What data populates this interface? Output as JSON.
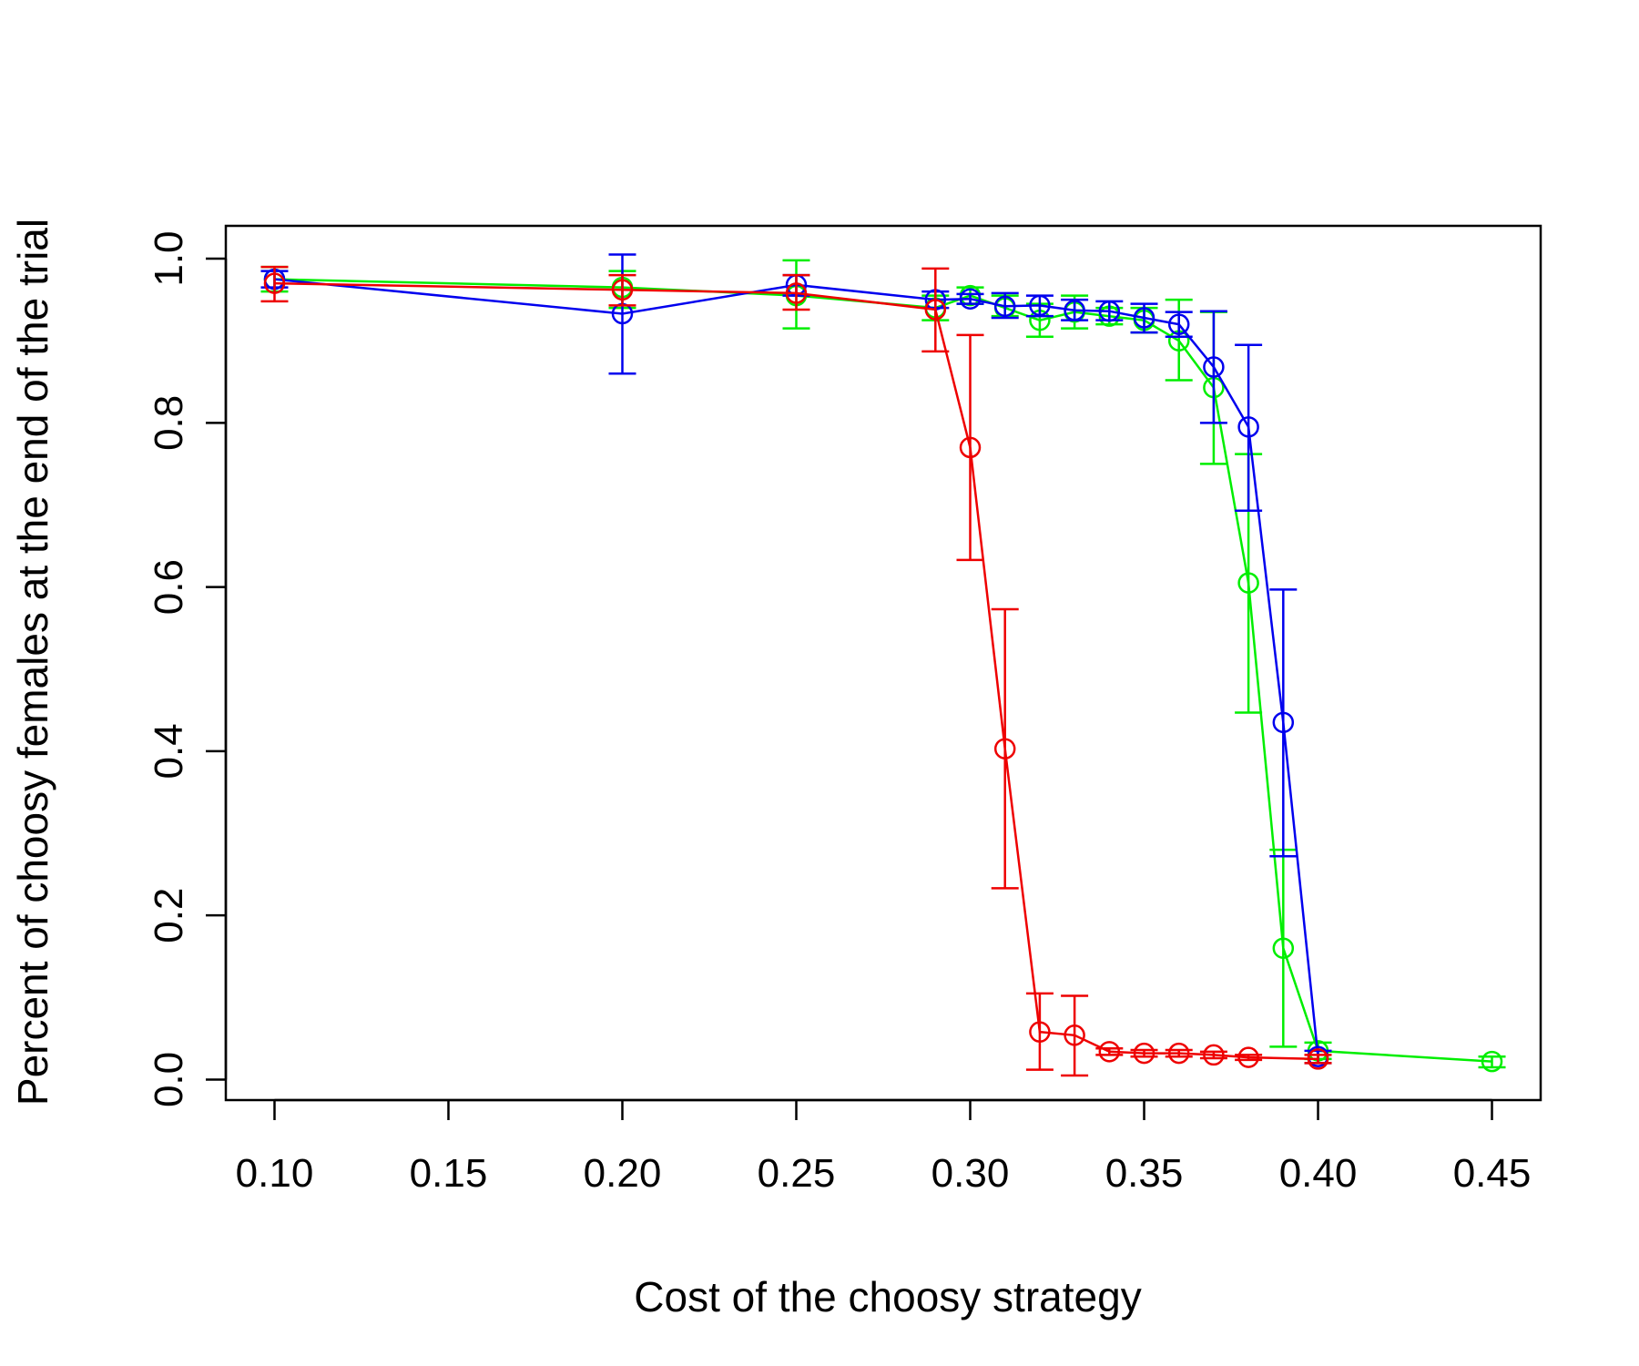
{
  "chart_data": {
    "type": "line",
    "title": "",
    "xlabel": "Cost of the choosy strategy",
    "ylabel": "Percent of choosy females at the end of the trial",
    "xlim": [
      0.086,
      0.464
    ],
    "ylim": [
      -0.025,
      1.04
    ],
    "xticks": [
      "0.10",
      "0.15",
      "0.20",
      "0.25",
      "0.30",
      "0.35",
      "0.40",
      "0.45"
    ],
    "yticks": [
      "0.0",
      "0.2",
      "0.4",
      "0.6",
      "0.8",
      "1.0"
    ],
    "grid": false,
    "legend": "none",
    "markers": "open-circle",
    "error_bars": true,
    "series": [
      {
        "name": "green",
        "color": "#00ee00",
        "x": [
          0.1,
          0.2,
          0.25,
          0.29,
          0.3,
          0.31,
          0.32,
          0.33,
          0.34,
          0.35,
          0.36,
          0.37,
          0.38,
          0.39,
          0.4,
          0.45
        ],
        "y": [
          0.975,
          0.965,
          0.955,
          0.94,
          0.955,
          0.94,
          0.925,
          0.935,
          0.93,
          0.925,
          0.9,
          0.843,
          0.605,
          0.16,
          0.035,
          0.022
        ],
        "err_low": [
          0.96,
          0.94,
          0.915,
          0.925,
          0.945,
          0.93,
          0.905,
          0.915,
          0.92,
          0.91,
          0.852,
          0.75,
          0.447,
          0.04,
          0.025,
          0.015
        ],
        "err_high": [
          0.99,
          0.985,
          0.998,
          0.955,
          0.965,
          0.955,
          0.945,
          0.955,
          0.94,
          0.94,
          0.95,
          0.935,
          0.762,
          0.28,
          0.045,
          0.028
        ]
      },
      {
        "name": "blue",
        "color": "#0000ee",
        "x": [
          0.1,
          0.2,
          0.25,
          0.29,
          0.3,
          0.31,
          0.32,
          0.33,
          0.34,
          0.35,
          0.36,
          0.37,
          0.38,
          0.39,
          0.4
        ],
        "y": [
          0.975,
          0.933,
          0.968,
          0.95,
          0.951,
          0.942,
          0.943,
          0.937,
          0.936,
          0.928,
          0.92,
          0.868,
          0.795,
          0.435,
          0.028
        ],
        "err_low": [
          0.965,
          0.86,
          0.955,
          0.94,
          0.945,
          0.928,
          0.93,
          0.925,
          0.925,
          0.91,
          0.905,
          0.8,
          0.693,
          0.272,
          0.02
        ],
        "err_high": [
          0.985,
          1.005,
          0.98,
          0.96,
          0.957,
          0.958,
          0.955,
          0.95,
          0.948,
          0.945,
          0.935,
          0.936,
          0.895,
          0.597,
          0.035
        ]
      },
      {
        "name": "red",
        "color": "#ee0000",
        "x": [
          0.1,
          0.2,
          0.25,
          0.29,
          0.3,
          0.31,
          0.32,
          0.33,
          0.34,
          0.35,
          0.36,
          0.37,
          0.38,
          0.4
        ],
        "y": [
          0.97,
          0.962,
          0.958,
          0.938,
          0.77,
          0.403,
          0.058,
          0.054,
          0.034,
          0.032,
          0.032,
          0.03,
          0.027,
          0.025
        ],
        "err_low": [
          0.948,
          0.943,
          0.938,
          0.887,
          0.633,
          0.233,
          0.012,
          0.005,
          0.03,
          0.028,
          0.028,
          0.026,
          0.024,
          0.02
        ],
        "err_high": [
          0.99,
          0.98,
          0.98,
          0.988,
          0.907,
          0.573,
          0.105,
          0.102,
          0.038,
          0.036,
          0.036,
          0.034,
          0.03,
          0.03
        ]
      }
    ]
  }
}
